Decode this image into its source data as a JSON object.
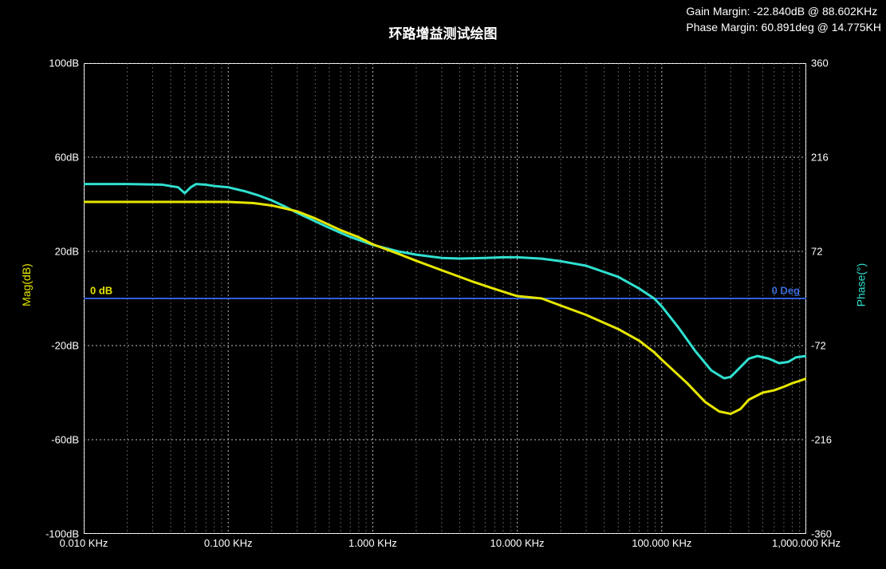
{
  "chart": {
    "type": "bode",
    "title": "环路增益测试绘图",
    "gain_margin_text": "Gain  Margin: -22.840dB @ 88.602KHz",
    "phase_margin_text": "Phase Margin: 60.891deg @ 14.775KH",
    "background_color": "#000000",
    "plot_bg": "#000000",
    "border_color": "#ffffff",
    "grid_major_color": "#c0c0c0",
    "grid_minor_color": "#808080",
    "grid_dash": "2,3",
    "zero_line_color": "#2f5fd8",
    "zero_db_label": "0 dB",
    "zero_deg_label": "0 Deg",
    "ylabel_left": "Mag(dB)",
    "ylabel_left_color": "#e6e600",
    "ylabel_right": "Phase(°)",
    "ylabel_right_color": "#30e0d0",
    "tick_font_color": "#ffffff",
    "tick_font_size": 13,
    "title_font_size": 17,
    "x_axis": {
      "scale": "log",
      "min_khz": 0.01,
      "max_khz": 1000.0,
      "tick_labels": [
        "0.010 KHz",
        "0.100 KHz",
        "1.000 KHz",
        "10.000 KHz",
        "100.000 KHz",
        "1,000.000 KHz"
      ],
      "tick_positions_khz": [
        0.01,
        0.1,
        1,
        10,
        100,
        1000
      ]
    },
    "y_left": {
      "label": "Mag(dB)",
      "min": -100,
      "max": 100,
      "tick_step": 40,
      "ticks": [
        100,
        60,
        20,
        -20,
        -60,
        -100
      ],
      "tick_labels": [
        "100dB",
        "60dB",
        "20dB",
        "-20dB",
        "-60dB",
        "-100dB"
      ]
    },
    "y_right": {
      "label": "Phase(°)",
      "min": -360,
      "max": 360,
      "ticks": [
        360,
        216,
        72,
        -72,
        -216,
        -360
      ],
      "tick_labels": [
        "360",
        "216",
        "72",
        "-72",
        "-216",
        "-360"
      ]
    },
    "series": {
      "mag": {
        "name": "Magnitude",
        "color": "#e6e600",
        "line_width": 3,
        "y_axis": "left",
        "points": [
          {
            "x_khz": 0.01,
            "y": 41
          },
          {
            "x_khz": 0.02,
            "y": 41
          },
          {
            "x_khz": 0.04,
            "y": 41
          },
          {
            "x_khz": 0.05,
            "y": 41
          },
          {
            "x_khz": 0.06,
            "y": 41
          },
          {
            "x_khz": 0.08,
            "y": 41
          },
          {
            "x_khz": 0.1,
            "y": 41
          },
          {
            "x_khz": 0.15,
            "y": 40.5
          },
          {
            "x_khz": 0.2,
            "y": 39.5
          },
          {
            "x_khz": 0.3,
            "y": 37
          },
          {
            "x_khz": 0.4,
            "y": 34
          },
          {
            "x_khz": 0.6,
            "y": 29
          },
          {
            "x_khz": 0.8,
            "y": 26
          },
          {
            "x_khz": 1.0,
            "y": 23
          },
          {
            "x_khz": 1.5,
            "y": 19
          },
          {
            "x_khz": 2.0,
            "y": 16
          },
          {
            "x_khz": 3.0,
            "y": 12
          },
          {
            "x_khz": 5.0,
            "y": 7
          },
          {
            "x_khz": 7.0,
            "y": 4
          },
          {
            "x_khz": 10.0,
            "y": 1
          },
          {
            "x_khz": 14.775,
            "y": 0
          },
          {
            "x_khz": 20.0,
            "y": -3
          },
          {
            "x_khz": 30.0,
            "y": -7
          },
          {
            "x_khz": 50.0,
            "y": -13
          },
          {
            "x_khz": 70.0,
            "y": -18
          },
          {
            "x_khz": 88.6,
            "y": -22.84
          },
          {
            "x_khz": 100.0,
            "y": -26
          },
          {
            "x_khz": 150.0,
            "y": -36
          },
          {
            "x_khz": 200.0,
            "y": -44
          },
          {
            "x_khz": 250.0,
            "y": -48
          },
          {
            "x_khz": 300.0,
            "y": -49
          },
          {
            "x_khz": 350.0,
            "y": -47
          },
          {
            "x_khz": 400.0,
            "y": -43
          },
          {
            "x_khz": 500.0,
            "y": -40
          },
          {
            "x_khz": 600.0,
            "y": -39
          },
          {
            "x_khz": 700.0,
            "y": -37.5
          },
          {
            "x_khz": 800.0,
            "y": -36
          },
          {
            "x_khz": 900.0,
            "y": -35
          },
          {
            "x_khz": 1000.0,
            "y": -34
          }
        ]
      },
      "phase": {
        "name": "Phase",
        "color": "#30e0d0",
        "line_width": 3,
        "y_axis": "right",
        "points": [
          {
            "x_khz": 0.01,
            "y": 175
          },
          {
            "x_khz": 0.02,
            "y": 175
          },
          {
            "x_khz": 0.035,
            "y": 174
          },
          {
            "x_khz": 0.045,
            "y": 170
          },
          {
            "x_khz": 0.05,
            "y": 161
          },
          {
            "x_khz": 0.055,
            "y": 170
          },
          {
            "x_khz": 0.06,
            "y": 175
          },
          {
            "x_khz": 0.07,
            "y": 174
          },
          {
            "x_khz": 0.08,
            "y": 172
          },
          {
            "x_khz": 0.1,
            "y": 170
          },
          {
            "x_khz": 0.13,
            "y": 164
          },
          {
            "x_khz": 0.16,
            "y": 158
          },
          {
            "x_khz": 0.2,
            "y": 150
          },
          {
            "x_khz": 0.25,
            "y": 140
          },
          {
            "x_khz": 0.3,
            "y": 131
          },
          {
            "x_khz": 0.4,
            "y": 118
          },
          {
            "x_khz": 0.5,
            "y": 108
          },
          {
            "x_khz": 0.7,
            "y": 94
          },
          {
            "x_khz": 1.0,
            "y": 82
          },
          {
            "x_khz": 1.5,
            "y": 72
          },
          {
            "x_khz": 2.0,
            "y": 67
          },
          {
            "x_khz": 3.0,
            "y": 62
          },
          {
            "x_khz": 4.0,
            "y": 61
          },
          {
            "x_khz": 6.0,
            "y": 62
          },
          {
            "x_khz": 8.0,
            "y": 63
          },
          {
            "x_khz": 10.0,
            "y": 63
          },
          {
            "x_khz": 14.775,
            "y": 60.9
          },
          {
            "x_khz": 20.0,
            "y": 57
          },
          {
            "x_khz": 30.0,
            "y": 50
          },
          {
            "x_khz": 50.0,
            "y": 33
          },
          {
            "x_khz": 70.0,
            "y": 15
          },
          {
            "x_khz": 88.6,
            "y": 0
          },
          {
            "x_khz": 100.0,
            "y": -12
          },
          {
            "x_khz": 130.0,
            "y": -44
          },
          {
            "x_khz": 170.0,
            "y": -80
          },
          {
            "x_khz": 220.0,
            "y": -110
          },
          {
            "x_khz": 270.0,
            "y": -122
          },
          {
            "x_khz": 300.0,
            "y": -120
          },
          {
            "x_khz": 350.0,
            "y": -105
          },
          {
            "x_khz": 400.0,
            "y": -92
          },
          {
            "x_khz": 460.0,
            "y": -88
          },
          {
            "x_khz": 550.0,
            "y": -92
          },
          {
            "x_khz": 650.0,
            "y": -99
          },
          {
            "x_khz": 750.0,
            "y": -97
          },
          {
            "x_khz": 850.0,
            "y": -90
          },
          {
            "x_khz": 1000.0,
            "y": -88
          }
        ]
      }
    }
  }
}
